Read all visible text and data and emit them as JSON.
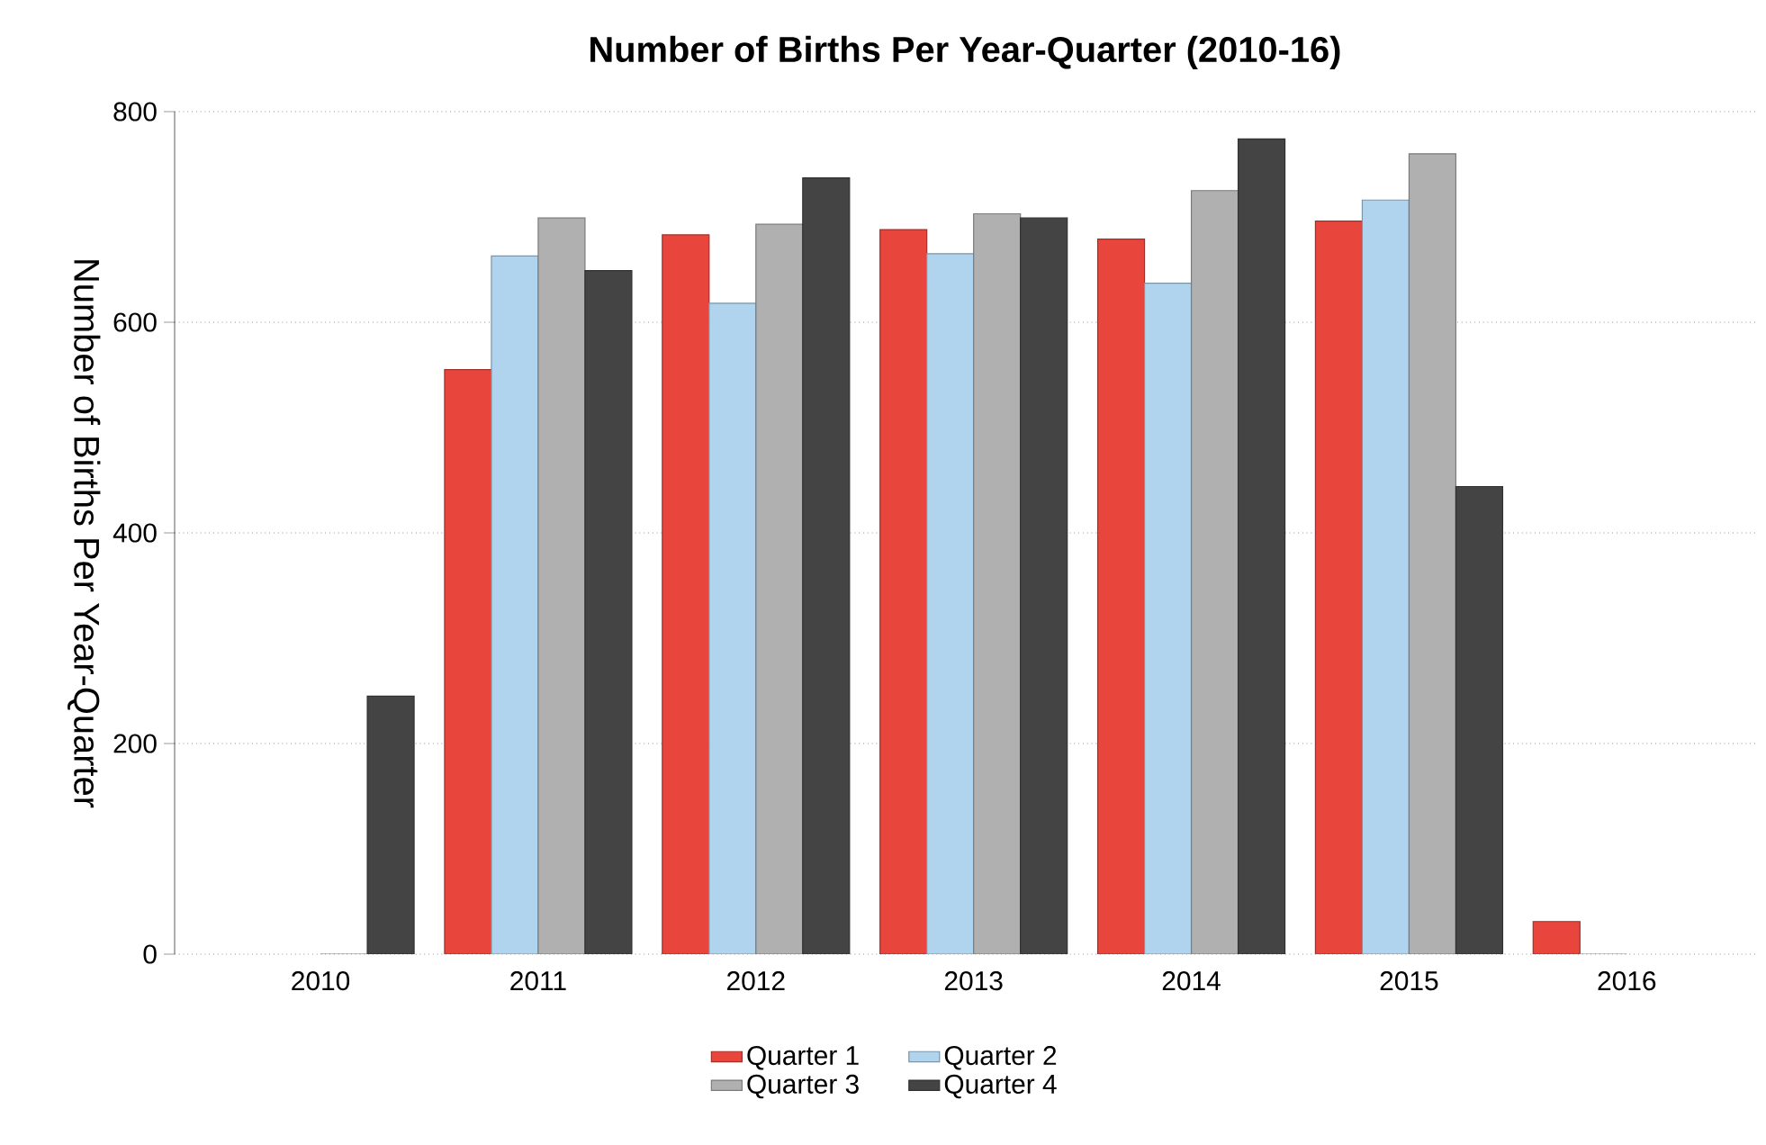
{
  "chart_data": {
    "type": "bar",
    "title": "Number of Births Per Year-Quarter (2010-16)",
    "ylabel": "Number of Births Per Year-Quarter",
    "categories": [
      "2010",
      "2011",
      "2012",
      "2013",
      "2014",
      "2015",
      "2016"
    ],
    "series": [
      {
        "name": "Quarter 1",
        "color": "#e8453c",
        "values": [
          null,
          555,
          683,
          688,
          679,
          696,
          31
        ]
      },
      {
        "name": "Quarter 2",
        "color": "#b0d4ee",
        "values": [
          null,
          663,
          618,
          665,
          637,
          716,
          0
        ]
      },
      {
        "name": "Quarter 3",
        "color": "#b0b0b0",
        "values": [
          0,
          699,
          693,
          703,
          725,
          760,
          null
        ]
      },
      {
        "name": "Quarter 4",
        "color": "#444444",
        "values": [
          245,
          649,
          737,
          699,
          774,
          444,
          null
        ]
      }
    ],
    "ylim": [
      0,
      800
    ],
    "yticks": [
      0,
      200,
      400,
      600,
      800
    ],
    "grid": "y",
    "legend": "bottom"
  }
}
